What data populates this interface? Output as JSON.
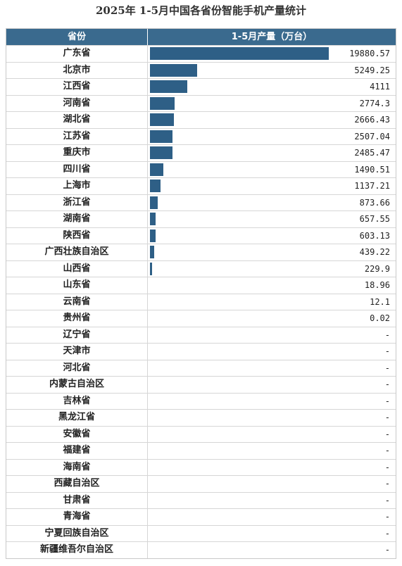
{
  "title": "2025年 1-5月中国各省份智能手机产量统计",
  "chart_data": {
    "type": "bar",
    "header": {
      "col1": "省份",
      "col2": "1-5月产量（万台）"
    },
    "bar_color": "#2e5f86",
    "header_color": "#3a6a8e",
    "rows": [
      {
        "province": "广东省",
        "value": 19880.57,
        "label": "19880.57"
      },
      {
        "province": "北京市",
        "value": 5249.25,
        "label": "5249.25"
      },
      {
        "province": "江西省",
        "value": 4111,
        "label": "4111"
      },
      {
        "province": "河南省",
        "value": 2774.3,
        "label": "2774.3"
      },
      {
        "province": "湖北省",
        "value": 2666.43,
        "label": "2666.43"
      },
      {
        "province": "江苏省",
        "value": 2507.04,
        "label": "2507.04"
      },
      {
        "province": "重庆市",
        "value": 2485.47,
        "label": "2485.47"
      },
      {
        "province": "四川省",
        "value": 1490.51,
        "label": "1490.51"
      },
      {
        "province": "上海市",
        "value": 1137.21,
        "label": "1137.21"
      },
      {
        "province": "浙江省",
        "value": 873.66,
        "label": "873.66"
      },
      {
        "province": "湖南省",
        "value": 657.55,
        "label": "657.55"
      },
      {
        "province": "陕西省",
        "value": 603.13,
        "label": "603.13"
      },
      {
        "province": "广西壮族自治区",
        "value": 439.22,
        "label": "439.22"
      },
      {
        "province": "山西省",
        "value": 229.9,
        "label": "229.9"
      },
      {
        "province": "山东省",
        "value": 18.96,
        "label": "18.96"
      },
      {
        "province": "云南省",
        "value": 12.1,
        "label": "12.1"
      },
      {
        "province": "贵州省",
        "value": 0.02,
        "label": "0.02"
      },
      {
        "province": "辽宁省",
        "value": null,
        "label": "-"
      },
      {
        "province": "天津市",
        "value": null,
        "label": "-"
      },
      {
        "province": "河北省",
        "value": null,
        "label": "-"
      },
      {
        "province": "内蒙古自治区",
        "value": null,
        "label": "-"
      },
      {
        "province": "吉林省",
        "value": null,
        "label": "-"
      },
      {
        "province": "黑龙江省",
        "value": null,
        "label": "-"
      },
      {
        "province": "安徽省",
        "value": null,
        "label": "-"
      },
      {
        "province": "福建省",
        "value": null,
        "label": "-"
      },
      {
        "province": "海南省",
        "value": null,
        "label": "-"
      },
      {
        "province": "西藏自治区",
        "value": null,
        "label": "-"
      },
      {
        "province": "甘肃省",
        "value": null,
        "label": "-"
      },
      {
        "province": "青海省",
        "value": null,
        "label": "-"
      },
      {
        "province": "宁夏回族自治区",
        "value": null,
        "label": "-"
      },
      {
        "province": "新疆维吾尔自治区",
        "value": null,
        "label": "-"
      }
    ]
  }
}
